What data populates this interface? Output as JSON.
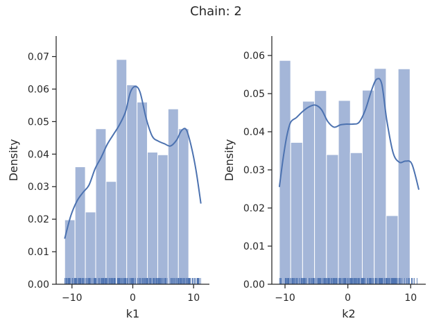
{
  "figure": {
    "title": "Chain: 2",
    "bar_color": "#a4b6d8",
    "line_color": "#4c72b0",
    "rug_color": "#4c72b0"
  },
  "chart_data": [
    {
      "type": "bar",
      "subtype": "histogram+kde+rug",
      "title": "",
      "xlabel": "k1",
      "ylabel": "Density",
      "xlim": [
        -12.6,
        12.6
      ],
      "ylim": [
        0,
        0.0763
      ],
      "xticks": [
        -10,
        0,
        10
      ],
      "xtick_labels": [
        "−10",
        "0",
        "10"
      ],
      "yticks": [
        0,
        0.01,
        0.02,
        0.03,
        0.04,
        0.05,
        0.06,
        0.07
      ],
      "ytick_labels": [
        "0.00",
        "0.01",
        "0.02",
        "0.03",
        "0.04",
        "0.05",
        "0.06",
        "0.07"
      ],
      "bins": [
        {
          "x0": -11.2,
          "x1": -9.5,
          "density": 0.0198
        },
        {
          "x0": -9.5,
          "x1": -7.8,
          "density": 0.0361
        },
        {
          "x0": -7.8,
          "x1": -6.1,
          "density": 0.0222
        },
        {
          "x0": -6.1,
          "x1": -4.4,
          "density": 0.0478
        },
        {
          "x0": -4.4,
          "x1": -2.7,
          "density": 0.0316
        },
        {
          "x0": -2.7,
          "x1": -1.0,
          "density": 0.0691
        },
        {
          "x0": -1.0,
          "x1": 0.7,
          "density": 0.0613
        },
        {
          "x0": 0.7,
          "x1": 2.4,
          "density": 0.056
        },
        {
          "x0": 2.4,
          "x1": 4.1,
          "density": 0.0406
        },
        {
          "x0": 4.1,
          "x1": 5.8,
          "density": 0.0398
        },
        {
          "x0": 5.8,
          "x1": 7.5,
          "density": 0.0539
        },
        {
          "x0": 7.5,
          "x1": 9.2,
          "density": 0.0478
        }
      ],
      "kde": {
        "x": [
          -11.2,
          -10.2,
          -9.2,
          -8.2,
          -7.2,
          -6.2,
          -5.2,
          -4.2,
          -3.2,
          -2.2,
          -1.2,
          -0.4,
          0.4,
          1.2,
          2.2,
          3.2,
          4.2,
          5.2,
          6.2,
          7.2,
          8.0,
          8.8,
          9.6,
          10.4,
          11.2
        ],
        "y": [
          0.014,
          0.021,
          0.0255,
          0.0282,
          0.0305,
          0.0355,
          0.039,
          0.043,
          0.046,
          0.049,
          0.053,
          0.059,
          0.0608,
          0.059,
          0.051,
          0.0455,
          0.044,
          0.0432,
          0.0425,
          0.0443,
          0.0472,
          0.0475,
          0.0425,
          0.035,
          0.0248
        ]
      }
    },
    {
      "type": "bar",
      "subtype": "histogram+kde+rug",
      "title": "",
      "xlabel": "k2",
      "ylabel": "Density",
      "xlim": [
        -12.1,
        12.4
      ],
      "ylim": [
        0,
        0.0651
      ],
      "xticks": [
        -10,
        0,
        10
      ],
      "xtick_labels": [
        "−10",
        "0",
        "10"
      ],
      "yticks": [
        0,
        0.01,
        0.02,
        0.03,
        0.04,
        0.05,
        0.06
      ],
      "ytick_labels": [
        "0.00",
        "0.01",
        "0.02",
        "0.03",
        "0.04",
        "0.05",
        "0.06"
      ],
      "bins": [
        {
          "x0": -10.9,
          "x1": -9.1,
          "density": 0.0587
        },
        {
          "x0": -9.1,
          "x1": -7.2,
          "density": 0.0372
        },
        {
          "x0": -7.2,
          "x1": -5.3,
          "density": 0.048
        },
        {
          "x0": -5.3,
          "x1": -3.4,
          "density": 0.0508
        },
        {
          "x0": -3.4,
          "x1": -1.5,
          "density": 0.034
        },
        {
          "x0": -1.5,
          "x1": 0.4,
          "density": 0.0482
        },
        {
          "x0": 0.4,
          "x1": 2.3,
          "density": 0.0345
        },
        {
          "x0": 2.3,
          "x1": 4.2,
          "density": 0.0509
        },
        {
          "x0": 4.2,
          "x1": 6.1,
          "density": 0.0566
        },
        {
          "x0": 6.1,
          "x1": 8.0,
          "density": 0.018
        },
        {
          "x0": 8.0,
          "x1": 9.9,
          "density": 0.0565
        }
      ],
      "kde": {
        "x": [
          -10.9,
          -10.3,
          -9.7,
          -9.1,
          -8.2,
          -7.2,
          -6.2,
          -5.2,
          -4.2,
          -3.2,
          -2.2,
          -1.2,
          -0.2,
          0.8,
          1.8,
          2.8,
          3.8,
          4.6,
          5.4,
          6.2,
          7.2,
          8.2,
          9.2,
          10.2,
          11.3
        ],
        "y": [
          0.0255,
          0.033,
          0.039,
          0.0425,
          0.0437,
          0.0453,
          0.0465,
          0.047,
          0.0458,
          0.0427,
          0.0412,
          0.0418,
          0.042,
          0.042,
          0.0425,
          0.0458,
          0.051,
          0.0538,
          0.0525,
          0.043,
          0.0345,
          0.032,
          0.0323,
          0.0315,
          0.0248
        ]
      }
    }
  ]
}
